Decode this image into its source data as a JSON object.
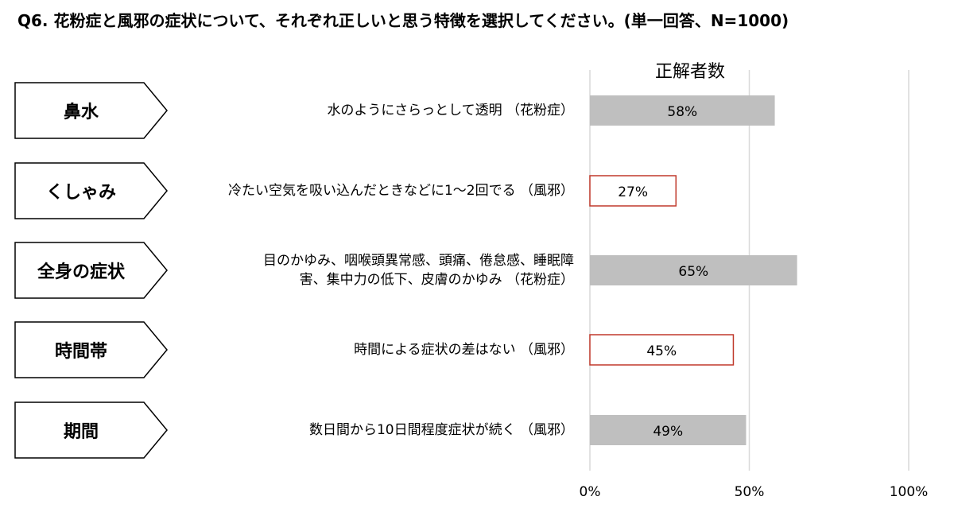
{
  "title": "Q6.  花粉症と風邪の症状について、それぞれ正しいと思う特徴を選択してください。(単一回答、N=1000)",
  "chart_data": {
    "type": "bar",
    "orientation": "horizontal",
    "title": "正解者数",
    "categories": [
      "鼻水",
      "くしゃみ",
      "全身の症状",
      "時間帯",
      "期間"
    ],
    "descriptions": [
      [
        "水のようにさらっとして透明 （花粉症）"
      ],
      [
        "冷たい空気を吸い込んだときなどに1～2回でる （風邪）"
      ],
      [
        "目のかゆみ、咽喉頭異常感、頭痛、倦怠感、睡眠障",
        "害、集中力の低下、皮膚のかゆみ （花粉症）"
      ],
      [
        "時間による症状の差はない （風邪）"
      ],
      [
        "数日間から10日間程度症状が続く （風邪）"
      ]
    ],
    "values": [
      58,
      27,
      65,
      45,
      49
    ],
    "value_labels": [
      "58%",
      "27%",
      "65%",
      "45%",
      "49%"
    ],
    "bar_styles": [
      "filled",
      "outlined",
      "filled",
      "outlined",
      "filled"
    ],
    "xlim": [
      0,
      100
    ],
    "xticks": [
      0,
      50,
      100
    ],
    "xtick_labels": [
      "0%",
      "50%",
      "100%"
    ],
    "grid": true,
    "colors": {
      "filled": "#bfbfbf",
      "outline": "#c0392b",
      "grid": "#d9d9d9",
      "tag_border": "#000000"
    }
  }
}
